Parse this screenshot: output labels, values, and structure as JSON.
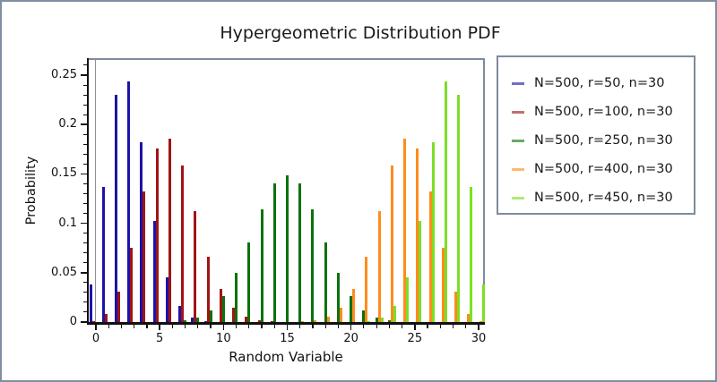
{
  "window": {
    "background": "#ffffff",
    "outer_border_color": "#7f8ea0"
  },
  "chart_data": {
    "type": "bar",
    "title": "Hypergeometric Distribution PDF",
    "xlabel": "Random Variable",
    "ylabel": "Probability",
    "x": [
      0,
      1,
      2,
      3,
      4,
      5,
      6,
      7,
      8,
      9,
      10,
      11,
      12,
      13,
      14,
      15,
      16,
      17,
      18,
      19,
      20,
      21,
      22,
      23,
      24,
      25,
      26,
      27,
      28,
      29,
      30
    ],
    "xlim": [
      -0.6,
      30.5
    ],
    "ylim": [
      0,
      0.267
    ],
    "x_ticks": [
      0,
      5,
      10,
      15,
      20,
      25,
      30
    ],
    "x_minor_step": 1,
    "y_ticks": [
      0,
      0.05,
      0.1,
      0.15,
      0.2,
      0.25
    ],
    "y_minor_step": 0.01,
    "grid": false,
    "zero_line_x": 0,
    "legend_position": "outside-right",
    "colors": {
      "axis": "#111111",
      "frame": "#7d8c9e",
      "zero_line": "#909090",
      "text": "#1a1a1a"
    },
    "series": [
      {
        "name": "N=500, r=50, n=30",
        "color": "#1c13a8",
        "values": [
          0.0383,
          0.1367,
          0.2302,
          0.2438,
          0.1824,
          0.1027,
          0.0452,
          0.016,
          0.0046,
          0.0011,
          0.0002,
          0,
          0,
          0,
          0,
          0,
          0,
          0,
          0,
          0,
          0,
          0,
          0,
          0,
          0,
          0,
          0,
          0,
          0,
          0,
          0
        ]
      },
      {
        "name": "N=500, r=100, n=30",
        "color": "#a11414",
        "values": [
          0.001,
          0.008,
          0.0308,
          0.0755,
          0.1322,
          0.176,
          0.1853,
          0.1584,
          0.1121,
          0.0665,
          0.0334,
          0.0144,
          0.0053,
          0.0017,
          0.0005,
          0.0001,
          0,
          0,
          0,
          0,
          0,
          0,
          0,
          0,
          0,
          0,
          0,
          0,
          0,
          0,
          0
        ]
      },
      {
        "name": "N=500, r=250, n=30",
        "color": "#0b720b",
        "values": [
          0,
          0,
          0,
          0,
          0,
          0.0001,
          0.0004,
          0.0015,
          0.0046,
          0.0119,
          0.0262,
          0.0495,
          0.0808,
          0.1143,
          0.1405,
          0.149,
          0.1405,
          0.1143,
          0.0808,
          0.0495,
          0.0262,
          0.0119,
          0.0046,
          0.0015,
          0.0004,
          0.0001,
          0,
          0,
          0,
          0,
          0
        ]
      },
      {
        "name": "N=500, r=400, n=30",
        "color": "#ff8c1e",
        "values": [
          0,
          0,
          0,
          0,
          0,
          0,
          0,
          0,
          0,
          0,
          0,
          0,
          0,
          0,
          0,
          0.0001,
          0.0005,
          0.0017,
          0.0053,
          0.0144,
          0.0334,
          0.0665,
          0.1121,
          0.1584,
          0.1853,
          0.176,
          0.1322,
          0.0755,
          0.0308,
          0.008,
          0.001
        ]
      },
      {
        "name": "N=500, r=450, n=30",
        "color": "#7cdf25",
        "values": [
          0,
          0,
          0,
          0,
          0,
          0,
          0,
          0,
          0,
          0,
          0,
          0,
          0,
          0,
          0,
          0,
          0,
          0,
          0,
          0,
          0.0002,
          0.0011,
          0.0046,
          0.016,
          0.0452,
          0.1027,
          0.1824,
          0.2438,
          0.2302,
          0.1367,
          0.0383
        ]
      }
    ]
  }
}
